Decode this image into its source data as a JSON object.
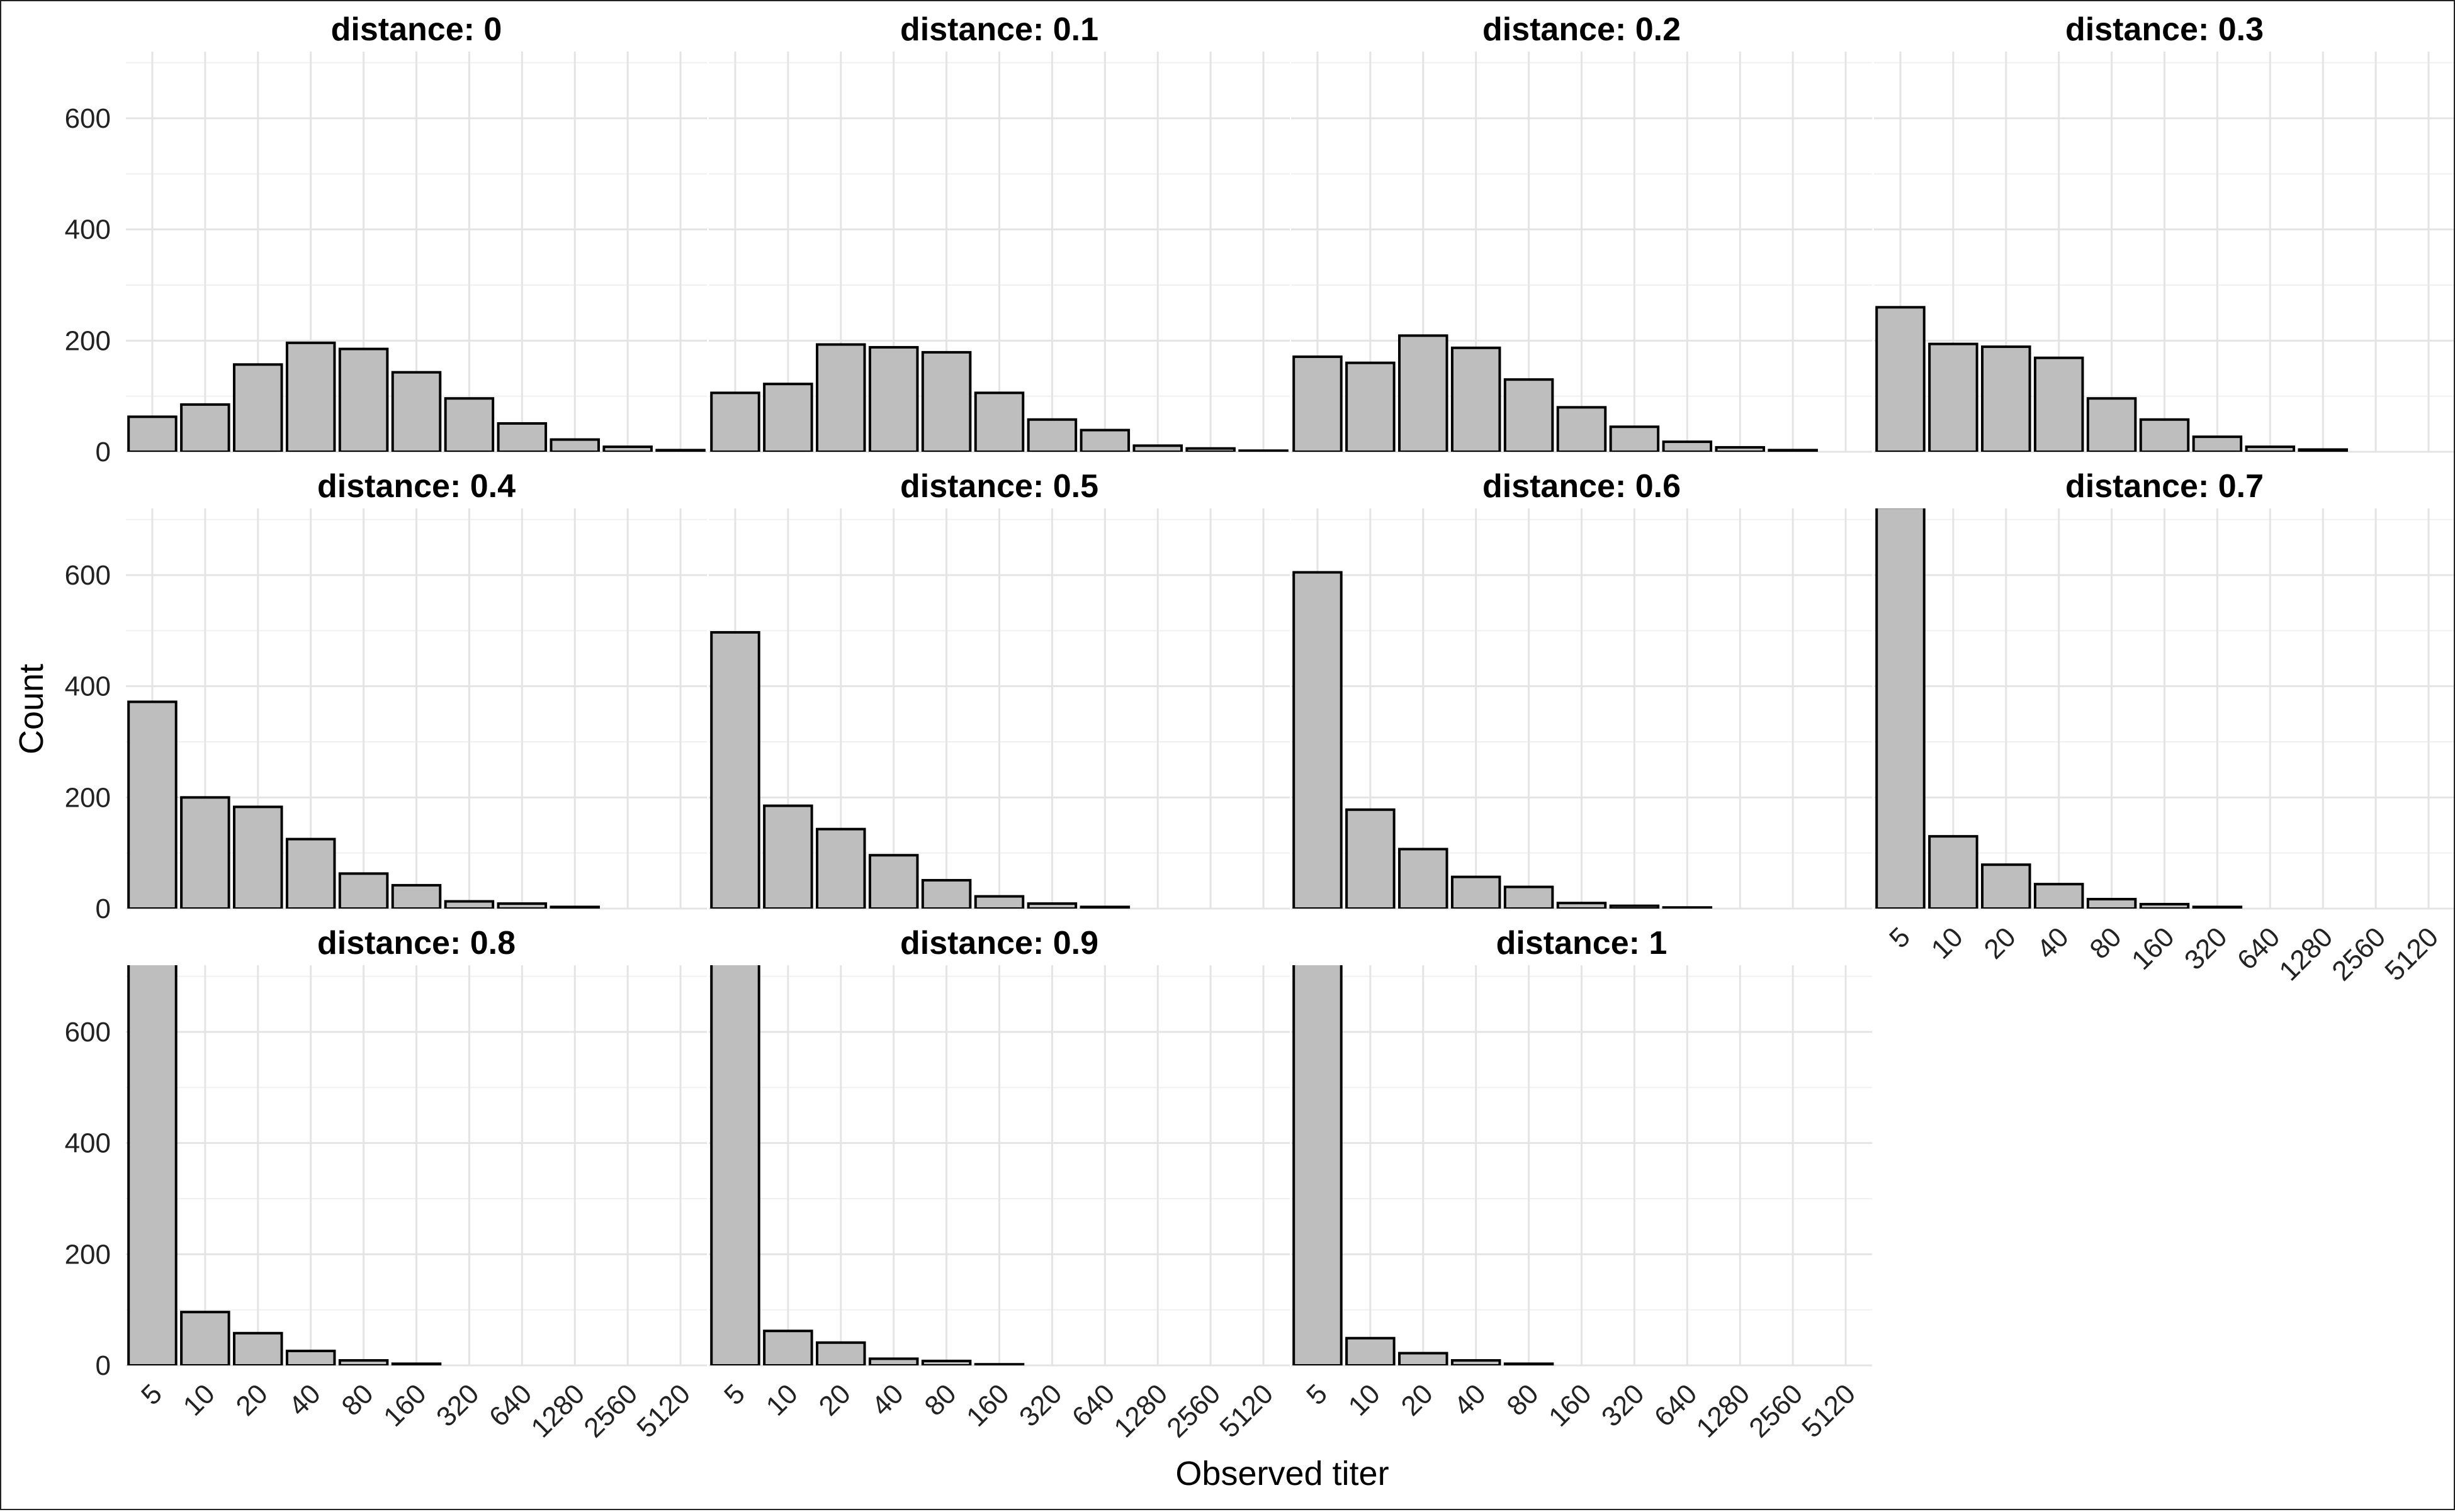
{
  "chart_data": {
    "type": "bar",
    "xlabel": "Observed titer",
    "ylabel": "Count",
    "ylim": [
      0,
      720
    ],
    "yticks": [
      0,
      200,
      400,
      600
    ],
    "categories": [
      "5",
      "10",
      "20",
      "40",
      "80",
      "160",
      "320",
      "640",
      "1280",
      "2560",
      "5120"
    ],
    "grid": true,
    "facets": [
      {
        "title": "distance: 0",
        "values": [
          63,
          85,
          157,
          196,
          185,
          143,
          96,
          51,
          22,
          9,
          3
        ]
      },
      {
        "title": "distance: 0.1",
        "values": [
          106,
          122,
          193,
          188,
          179,
          106,
          58,
          39,
          11,
          6,
          2
        ]
      },
      {
        "title": "distance: 0.2",
        "values": [
          171,
          160,
          209,
          187,
          130,
          80,
          45,
          18,
          8,
          3,
          0
        ]
      },
      {
        "title": "distance: 0.3",
        "values": [
          260,
          194,
          189,
          169,
          96,
          58,
          27,
          9,
          4,
          0,
          0
        ]
      },
      {
        "title": "distance: 0.4",
        "values": [
          372,
          200,
          183,
          125,
          63,
          42,
          13,
          9,
          3,
          0,
          0
        ]
      },
      {
        "title": "distance: 0.5",
        "values": [
          497,
          185,
          143,
          96,
          51,
          22,
          9,
          3,
          0,
          0,
          0
        ]
      },
      {
        "title": "distance: 0.6",
        "values": [
          605,
          178,
          107,
          57,
          39,
          10,
          5,
          2,
          0,
          0,
          0
        ]
      },
      {
        "title": "distance: 0.7",
        "values": [
          722,
          130,
          79,
          44,
          17,
          8,
          3,
          0,
          0,
          0,
          0
        ]
      },
      {
        "title": "distance: 0.8",
        "values": [
          760,
          96,
          58,
          26,
          9,
          3,
          0,
          0,
          0,
          0,
          0
        ]
      },
      {
        "title": "distance: 0.9",
        "values": [
          780,
          62,
          41,
          12,
          8,
          2,
          0,
          0,
          0,
          0,
          0
        ]
      },
      {
        "title": "distance: 1",
        "values": [
          800,
          49,
          22,
          9,
          3,
          0,
          0,
          0,
          0,
          0,
          0
        ]
      }
    ]
  }
}
